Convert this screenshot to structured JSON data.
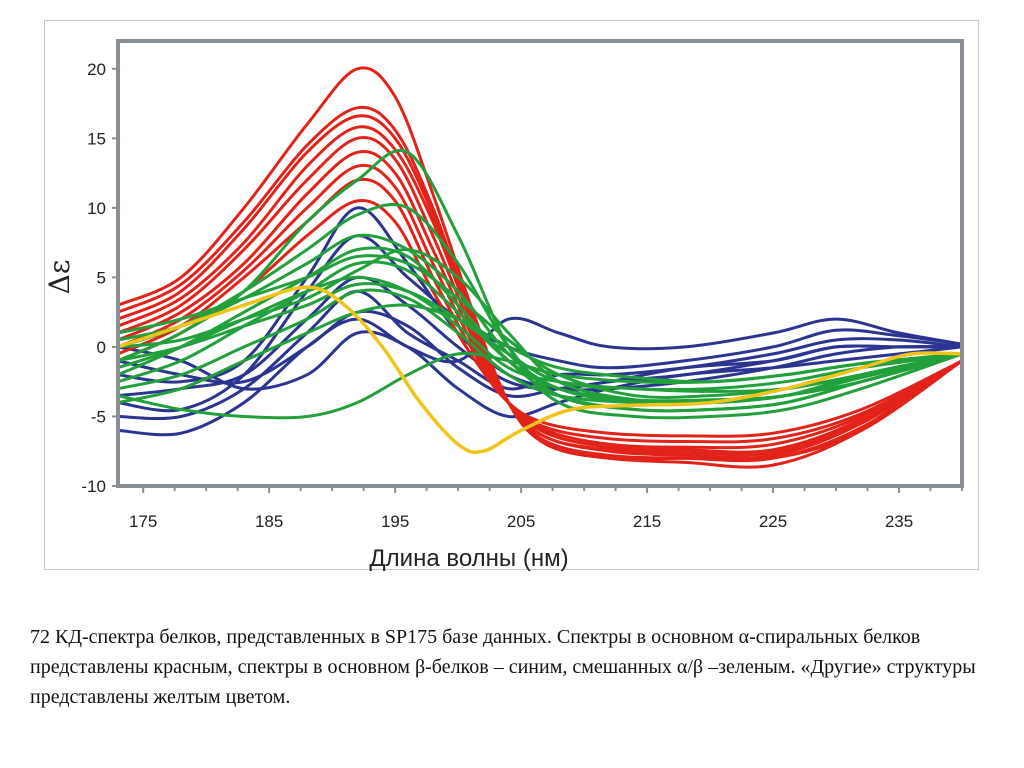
{
  "chart_data": {
    "type": "line",
    "title": "",
    "xlabel": "Длина волны (нм)",
    "ylabel": "Δε",
    "xlim": [
      173,
      240
    ],
    "ylim": [
      -10,
      22
    ],
    "xticks": [
      175,
      185,
      195,
      205,
      215,
      225,
      235
    ],
    "yticks": [
      20,
      15,
      10,
      5,
      0,
      -5,
      -10
    ],
    "grid": false,
    "legend": "none",
    "colors": {
      "red": "#e2231a",
      "blue": "#2b3591",
      "green": "#22a03c",
      "yellow": "#f2c319",
      "axis": "#8a8f96"
    },
    "series": [
      {
        "color": "red",
        "x": [
          173,
          178,
          183,
          188,
          192,
          195,
          198,
          201,
          204,
          207,
          212,
          218,
          225,
          232,
          240
        ],
        "values": [
          3,
          5,
          10,
          16,
          20,
          18,
          11,
          3,
          -4,
          -7,
          -8,
          -8,
          -8,
          -6,
          -1
        ]
      },
      {
        "color": "red",
        "x": [
          173,
          178,
          183,
          188,
          192,
          195,
          198,
          201,
          204,
          207,
          212,
          218,
          225,
          232,
          240
        ],
        "values": [
          2.5,
          4.5,
          9,
          14.5,
          17.2,
          15.6,
          10,
          2.5,
          -4,
          -7,
          -8,
          -8.3,
          -8.5,
          -6,
          -1
        ]
      },
      {
        "color": "red",
        "x": [
          173,
          178,
          183,
          188,
          192,
          195,
          198,
          201,
          204,
          207,
          212,
          218,
          225,
          232,
          240
        ],
        "values": [
          2,
          4,
          8.5,
          14,
          16.6,
          15,
          9.5,
          2,
          -4,
          -6.8,
          -7.8,
          -8,
          -8,
          -5.8,
          -1
        ]
      },
      {
        "color": "red",
        "x": [
          173,
          178,
          183,
          188,
          192,
          195,
          198,
          201,
          204,
          207,
          212,
          218,
          225,
          232,
          240
        ],
        "values": [
          1.5,
          3.5,
          7.5,
          13,
          15.8,
          14.2,
          9,
          2,
          -4,
          -6.5,
          -7.5,
          -7.8,
          -7.8,
          -5.5,
          -1
        ]
      },
      {
        "color": "red",
        "x": [
          173,
          178,
          183,
          188,
          192,
          195,
          198,
          201,
          204,
          207,
          212,
          218,
          225,
          232,
          240
        ],
        "values": [
          1,
          3,
          7,
          12,
          15,
          13.5,
          8,
          1.5,
          -4,
          -6.5,
          -7.4,
          -7.6,
          -7.6,
          -5.4,
          -1
        ]
      },
      {
        "color": "red",
        "x": [
          173,
          178,
          183,
          188,
          192,
          195,
          198,
          201,
          204,
          207,
          212,
          218,
          225,
          232,
          240
        ],
        "values": [
          0.5,
          2.5,
          6,
          11,
          14,
          12.5,
          7,
          1,
          -4,
          -6.2,
          -7.2,
          -7.4,
          -7.4,
          -5.2,
          -1
        ]
      },
      {
        "color": "red",
        "x": [
          173,
          178,
          183,
          188,
          192,
          195,
          198,
          201,
          204,
          207,
          212,
          218,
          225,
          232,
          240
        ],
        "values": [
          0,
          2,
          5.5,
          10,
          13,
          11.5,
          6,
          0.5,
          -4,
          -6,
          -7,
          -7.2,
          -7,
          -5,
          -1
        ]
      },
      {
        "color": "red",
        "x": [
          173,
          178,
          183,
          188,
          192,
          195,
          198,
          201,
          204,
          207,
          212,
          218,
          225,
          232,
          240
        ],
        "values": [
          -0.5,
          1.5,
          5,
          9,
          12,
          10.5,
          5,
          0,
          -4,
          -5.8,
          -6.6,
          -6.8,
          -6.6,
          -4.8,
          -1
        ]
      },
      {
        "color": "red",
        "x": [
          173,
          178,
          183,
          188,
          192,
          195,
          198,
          201,
          204,
          207,
          212,
          218,
          225,
          232,
          240
        ],
        "values": [
          -1,
          1,
          4,
          8,
          10.5,
          9,
          4,
          -0.5,
          -4,
          -5.5,
          -6.2,
          -6.4,
          -6.2,
          -4.5,
          -1
        ]
      },
      {
        "color": "blue",
        "x": [
          173,
          178,
          183,
          188,
          192,
          196,
          200,
          204,
          208,
          212,
          218,
          225,
          230,
          235,
          240
        ],
        "values": [
          -6,
          -6.2,
          -4,
          0,
          2,
          0,
          -1,
          2,
          1,
          0,
          0,
          1,
          2,
          1,
          0.2
        ]
      },
      {
        "color": "blue",
        "x": [
          173,
          178,
          183,
          188,
          192,
          196,
          200,
          204,
          208,
          212,
          218,
          225,
          230,
          235,
          240
        ],
        "values": [
          -4,
          -4.5,
          -2,
          4,
          8,
          5,
          2,
          0,
          -1,
          -1.5,
          -1,
          0,
          1.2,
          0.8,
          0.2
        ]
      },
      {
        "color": "blue",
        "x": [
          173,
          178,
          183,
          188,
          192,
          196,
          200,
          204,
          208,
          212,
          218,
          225,
          230,
          235,
          240
        ],
        "values": [
          -2,
          -2.5,
          -1,
          5,
          10,
          6,
          1,
          -2,
          -3,
          -3,
          -2.5,
          -1.5,
          -0.5,
          0,
          0
        ]
      },
      {
        "color": "blue",
        "x": [
          173,
          178,
          183,
          188,
          192,
          196,
          200,
          204,
          208,
          212,
          218,
          225,
          230,
          235,
          240
        ],
        "values": [
          0,
          -1,
          -3,
          -2,
          1,
          0,
          -3,
          -5,
          -4,
          -3,
          -2,
          -1.5,
          -1,
          -0.5,
          0
        ]
      },
      {
        "color": "blue",
        "x": [
          173,
          178,
          183,
          188,
          192,
          196,
          200,
          204,
          208,
          212,
          218,
          225,
          230,
          235,
          240
        ],
        "values": [
          -3.5,
          -3,
          -2,
          2,
          5,
          3,
          0,
          -2.5,
          -3,
          -2.5,
          -2,
          -1,
          0,
          0,
          0
        ]
      },
      {
        "color": "blue",
        "x": [
          173,
          178,
          183,
          188,
          192,
          196,
          200,
          204,
          208,
          212,
          218,
          225,
          230,
          235,
          240
        ],
        "values": [
          -5,
          -5,
          -3,
          1,
          4,
          1,
          -1,
          -3,
          -2,
          -2,
          -1.5,
          -0.5,
          0.5,
          0.5,
          0
        ]
      },
      {
        "color": "blue",
        "x": [
          173,
          178,
          183,
          188,
          192,
          196,
          200,
          204,
          208,
          212,
          218,
          225,
          230,
          235,
          240
        ],
        "values": [
          -1,
          -2,
          -2.5,
          0,
          2.5,
          1.5,
          -1.5,
          -3.5,
          -3,
          -2.5,
          -1.5,
          -1,
          0,
          0,
          0
        ]
      },
      {
        "color": "green",
        "x": [
          173,
          178,
          183,
          188,
          192,
          196,
          200,
          204,
          208,
          214,
          220,
          226,
          232,
          240
        ],
        "values": [
          -1,
          1,
          4,
          9,
          12,
          14,
          8,
          0,
          -4,
          -5,
          -5,
          -4.5,
          -3,
          -0.5
        ]
      },
      {
        "color": "green",
        "x": [
          173,
          178,
          183,
          188,
          192,
          196,
          200,
          204,
          208,
          214,
          220,
          226,
          232,
          240
        ],
        "values": [
          0,
          1.5,
          4,
          7,
          9.5,
          10,
          6,
          0,
          -3.5,
          -4.5,
          -4.5,
          -4,
          -2.5,
          -0.5
        ]
      },
      {
        "color": "green",
        "x": [
          173,
          178,
          183,
          188,
          192,
          196,
          200,
          204,
          208,
          214,
          220,
          226,
          232,
          240
        ],
        "values": [
          0.5,
          1.5,
          3.5,
          6,
          8,
          7,
          4,
          -0.5,
          -3,
          -4,
          -4,
          -3.5,
          -2.5,
          -0.5
        ]
      },
      {
        "color": "green",
        "x": [
          173,
          178,
          183,
          188,
          192,
          196,
          200,
          204,
          208,
          214,
          220,
          226,
          232,
          240
        ],
        "values": [
          -2,
          0,
          2.5,
          5,
          7,
          6.5,
          3,
          -1,
          -3.5,
          -4.5,
          -4.5,
          -4,
          -2.5,
          -0.5
        ]
      },
      {
        "color": "green",
        "x": [
          173,
          178,
          183,
          188,
          192,
          196,
          200,
          204,
          208,
          214,
          220,
          226,
          232,
          240
        ],
        "values": [
          -2.5,
          -1,
          1.5,
          4,
          6,
          5.5,
          2.5,
          -1,
          -3,
          -3.8,
          -3.8,
          -3.5,
          -2.2,
          -0.5
        ]
      },
      {
        "color": "green",
        "x": [
          173,
          178,
          183,
          188,
          192,
          196,
          200,
          204,
          208,
          214,
          220,
          226,
          232,
          240
        ],
        "values": [
          -1.5,
          0,
          2,
          4,
          5,
          4,
          1.5,
          -1.5,
          -2.5,
          -3,
          -3,
          -2.5,
          -1.5,
          -0.5
        ]
      },
      {
        "color": "green",
        "x": [
          173,
          178,
          183,
          188,
          192,
          196,
          200,
          204,
          208,
          214,
          220,
          226,
          232,
          240
        ],
        "values": [
          -3,
          -2,
          0,
          2,
          4,
          3.5,
          1,
          -2,
          -3.5,
          -4,
          -4,
          -3.5,
          -2,
          -0.5
        ]
      },
      {
        "color": "green",
        "x": [
          173,
          178,
          183,
          188,
          192,
          196,
          200,
          204,
          208,
          214,
          220,
          226,
          232,
          240
        ],
        "values": [
          -3.5,
          -4.5,
          -5,
          -5,
          -4,
          -2,
          -0.5,
          -1,
          -2,
          -2.5,
          -2.5,
          -2,
          -1.2,
          -0.5
        ]
      },
      {
        "color": "green",
        "x": [
          173,
          178,
          183,
          188,
          192,
          196,
          200,
          204,
          208,
          214,
          220,
          226,
          232,
          240
        ],
        "values": [
          1,
          2,
          3.5,
          5,
          6.5,
          6,
          3.5,
          0.5,
          -2,
          -3.5,
          -3.5,
          -3,
          -2,
          -0.5
        ]
      },
      {
        "color": "green",
        "x": [
          173,
          178,
          183,
          188,
          192,
          196,
          200,
          204,
          208,
          214,
          220,
          226,
          232,
          240
        ],
        "values": [
          -1,
          0,
          1.5,
          3,
          4.5,
          4,
          2,
          -0.5,
          -2.5,
          -3,
          -3.2,
          -3,
          -2,
          -0.5
        ]
      },
      {
        "color": "green",
        "x": [
          173,
          178,
          183,
          188,
          192,
          196,
          200,
          204,
          208,
          214,
          220,
          226,
          232,
          240
        ],
        "values": [
          0,
          0.5,
          2,
          3.5,
          5.5,
          7,
          5,
          1,
          -2.5,
          -3.8,
          -4,
          -3.5,
          -2.2,
          -0.5
        ]
      },
      {
        "color": "green",
        "x": [
          173,
          178,
          183,
          188,
          192,
          196,
          200,
          204,
          208,
          214,
          220,
          226,
          232,
          240
        ],
        "values": [
          -4,
          -3,
          -1,
          1,
          2.5,
          3,
          2,
          0,
          -1.5,
          -2.2,
          -2.5,
          -2,
          -1.2,
          -0.5
        ]
      },
      {
        "color": "yellow",
        "x": [
          173,
          178,
          183,
          188,
          191,
          194,
          197,
          200,
          202,
          205,
          209,
          214,
          220,
          226,
          232,
          236,
          240
        ],
        "values": [
          0,
          1.5,
          3,
          4.3,
          3,
          0,
          -4,
          -7,
          -7.5,
          -6,
          -4.5,
          -4.2,
          -4,
          -3,
          -1.5,
          -0.5,
          -0.5
        ]
      }
    ]
  },
  "caption": "72  КД-спектра белков, представленных в SP175 базе данных. Спектры в основном α-спиральных белков представлены красным, спектры  в основном β-белков – синим, смешанных α/β –зеленым. «Другие» структуры представлены желтым цветом."
}
